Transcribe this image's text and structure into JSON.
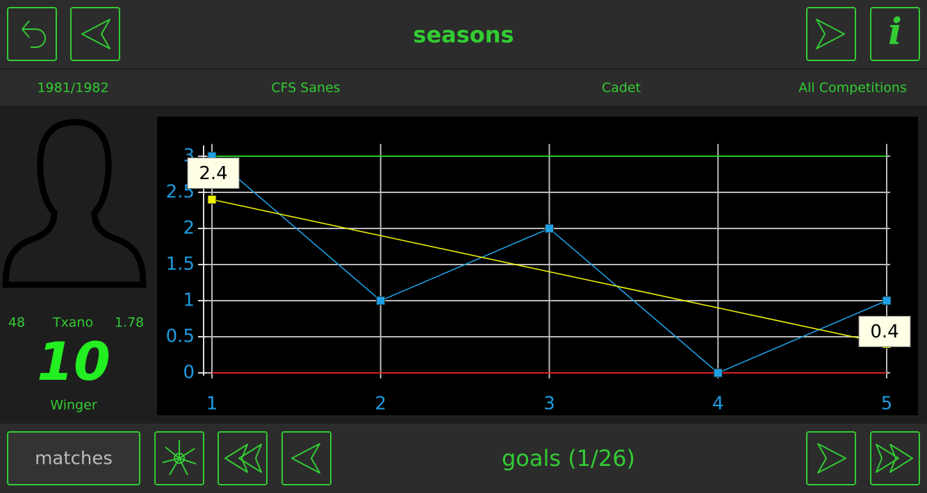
{
  "header": {
    "title": "seasons"
  },
  "filters": [
    "1981/1982",
    "CFS Sanes",
    "Cadet",
    "All Competitions"
  ],
  "player": {
    "weight": "48",
    "name": "Txano",
    "height": "1.78",
    "number": "10",
    "position": "Winger"
  },
  "footer": {
    "button": "matches",
    "title": "goals (1/26)"
  },
  "chart_data": {
    "type": "line",
    "x": [
      1,
      2,
      3,
      4,
      5
    ],
    "xlim": [
      1,
      5
    ],
    "xticks": [
      1,
      2,
      3,
      4,
      5
    ],
    "ylim": [
      0,
      3.15
    ],
    "yticks": [
      0,
      0.5,
      1,
      1.5,
      2,
      2.5,
      3
    ],
    "grid": true,
    "reference_lines": [
      {
        "value": 3,
        "color": "#22cc22"
      },
      {
        "value": 0,
        "color": "#dd2222"
      }
    ],
    "series": [
      {
        "color": "#1ea0e6",
        "values": [
          3,
          1,
          2,
          0,
          1
        ]
      },
      {
        "color": "#f0f000",
        "values": [
          2.4,
          1.9,
          1.4,
          0.9,
          0.4
        ]
      }
    ]
  }
}
